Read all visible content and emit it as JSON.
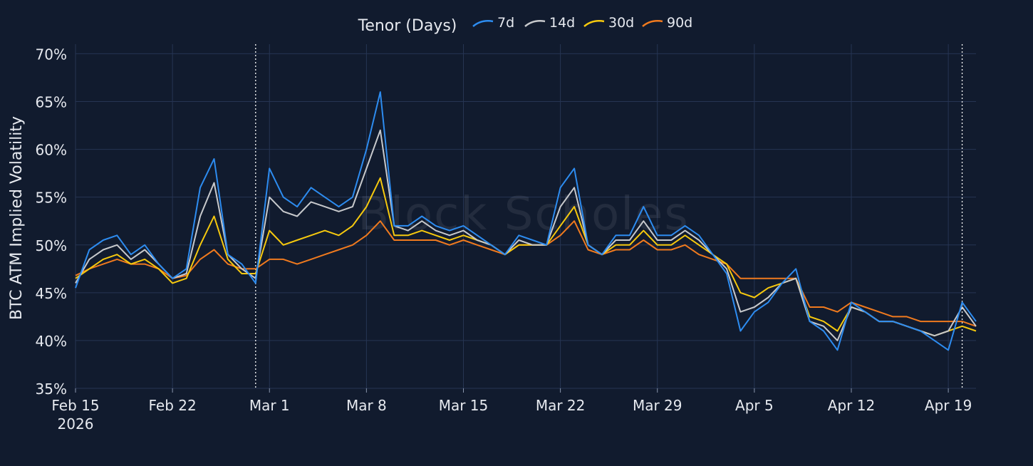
{
  "chart_data": {
    "type": "line",
    "legend": {
      "title": "Tenor (Days)",
      "placement": "top-center",
      "entries": [
        "7d",
        "14d",
        "30d",
        "90d"
      ]
    },
    "watermark": "Block Scholes",
    "ylabel": "BTC ATM Implied Volatility",
    "xlabel": "",
    "ylim": [
      35,
      71
    ],
    "y_unit": "%",
    "y_ticks": [
      35,
      40,
      45,
      50,
      55,
      60,
      65,
      70
    ],
    "y_tick_labels": [
      "35%",
      "40%",
      "45%",
      "50%",
      "55%",
      "60%",
      "65%",
      "70%"
    ],
    "xlim": [
      "2026-02-15",
      "2026-04-21"
    ],
    "x_ticks": [
      "2026-02-15",
      "2026-02-22",
      "2026-03-01",
      "2026-03-08",
      "2026-03-15",
      "2026-03-22",
      "2026-03-29",
      "2026-04-05",
      "2026-04-12",
      "2026-04-19"
    ],
    "x_tick_labels": [
      "Feb 15",
      "Feb 22",
      "Mar 1",
      "Mar 8",
      "Mar 15",
      "Mar 22",
      "Mar 29",
      "Apr 5",
      "Apr 12",
      "Apr 19"
    ],
    "x_year_label": "2026",
    "vertical_markers": [
      "2026-02-28",
      "2026-04-20"
    ],
    "grid": true,
    "colors": {
      "background": "#111b2e",
      "grid": "#263553",
      "text": "#e6e9ef",
      "7d": "#2d8cf0",
      "14d": "#c7c9cc",
      "30d": "#f6c90e",
      "90d": "#f07a1e"
    },
    "series": [
      {
        "name": "7d",
        "x": [
          "2026-02-15",
          "2026-02-16",
          "2026-02-17",
          "2026-02-18",
          "2026-02-19",
          "2026-02-20",
          "2026-02-21",
          "2026-02-22",
          "2026-02-23",
          "2026-02-24",
          "2026-02-25",
          "2026-02-26",
          "2026-02-27",
          "2026-02-28",
          "2026-03-01",
          "2026-03-02",
          "2026-03-03",
          "2026-03-04",
          "2026-03-05",
          "2026-03-06",
          "2026-03-07",
          "2026-03-08",
          "2026-03-09",
          "2026-03-10",
          "2026-03-11",
          "2026-03-12",
          "2026-03-13",
          "2026-03-14",
          "2026-03-15",
          "2026-03-16",
          "2026-03-17",
          "2026-03-18",
          "2026-03-19",
          "2026-03-20",
          "2026-03-21",
          "2026-03-22",
          "2026-03-23",
          "2026-03-24",
          "2026-03-25",
          "2026-03-26",
          "2026-03-27",
          "2026-03-28",
          "2026-03-29",
          "2026-03-30",
          "2026-03-31",
          "2026-04-01",
          "2026-04-02",
          "2026-04-03",
          "2026-04-04",
          "2026-04-05",
          "2026-04-06",
          "2026-04-07",
          "2026-04-08",
          "2026-04-09",
          "2026-04-10",
          "2026-04-11",
          "2026-04-12",
          "2026-04-13",
          "2026-04-14",
          "2026-04-15",
          "2026-04-16",
          "2026-04-17",
          "2026-04-18",
          "2026-04-19",
          "2026-04-20",
          "2026-04-21"
        ],
        "values": [
          45.5,
          49.5,
          50.5,
          51.0,
          49.0,
          50.0,
          48.0,
          46.5,
          47.5,
          56.0,
          59.0,
          49.0,
          48.0,
          46.0,
          58.0,
          55.0,
          54.0,
          56.0,
          55.0,
          54.0,
          55.0,
          60.0,
          66.0,
          52.0,
          52.0,
          53.0,
          52.0,
          51.5,
          52.0,
          51.0,
          50.0,
          49.0,
          51.0,
          50.5,
          50.0,
          56.0,
          58.0,
          50.0,
          49.0,
          51.0,
          51.0,
          54.0,
          51.0,
          51.0,
          52.0,
          51.0,
          49.0,
          47.0,
          41.0,
          43.0,
          44.0,
          46.0,
          47.5,
          42.0,
          41.0,
          39.0,
          44.0,
          43.0,
          42.0,
          42.0,
          41.5,
          41.0,
          40.0,
          39.0,
          44.0,
          42.0
        ]
      },
      {
        "name": "14d",
        "x": [
          "2026-02-15",
          "2026-02-16",
          "2026-02-17",
          "2026-02-18",
          "2026-02-19",
          "2026-02-20",
          "2026-02-21",
          "2026-02-22",
          "2026-02-23",
          "2026-02-24",
          "2026-02-25",
          "2026-02-26",
          "2026-02-27",
          "2026-02-28",
          "2026-03-01",
          "2026-03-02",
          "2026-03-03",
          "2026-03-04",
          "2026-03-05",
          "2026-03-06",
          "2026-03-07",
          "2026-03-08",
          "2026-03-09",
          "2026-03-10",
          "2026-03-11",
          "2026-03-12",
          "2026-03-13",
          "2026-03-14",
          "2026-03-15",
          "2026-03-16",
          "2026-03-17",
          "2026-03-18",
          "2026-03-19",
          "2026-03-20",
          "2026-03-21",
          "2026-03-22",
          "2026-03-23",
          "2026-03-24",
          "2026-03-25",
          "2026-03-26",
          "2026-03-27",
          "2026-03-28",
          "2026-03-29",
          "2026-03-30",
          "2026-03-31",
          "2026-04-01",
          "2026-04-02",
          "2026-04-03",
          "2026-04-04",
          "2026-04-05",
          "2026-04-06",
          "2026-04-07",
          "2026-04-08",
          "2026-04-09",
          "2026-04-10",
          "2026-04-11",
          "2026-04-12",
          "2026-04-13",
          "2026-04-14",
          "2026-04-15",
          "2026-04-16",
          "2026-04-17",
          "2026-04-18",
          "2026-04-19",
          "2026-04-20",
          "2026-04-21"
        ],
        "values": [
          46.0,
          48.5,
          49.5,
          50.0,
          48.5,
          49.5,
          48.0,
          46.5,
          47.0,
          53.0,
          56.5,
          49.0,
          47.5,
          46.5,
          55.0,
          53.5,
          53.0,
          54.5,
          54.0,
          53.5,
          54.0,
          58.0,
          62.0,
          52.0,
          51.5,
          52.5,
          51.5,
          51.0,
          51.5,
          50.5,
          50.0,
          49.0,
          50.5,
          50.0,
          50.0,
          54.0,
          56.0,
          50.0,
          49.0,
          50.5,
          50.5,
          52.5,
          50.5,
          50.5,
          51.5,
          50.5,
          49.0,
          47.5,
          43.0,
          43.5,
          44.5,
          46.0,
          46.5,
          42.0,
          41.5,
          40.0,
          43.5,
          43.0,
          42.0,
          42.0,
          41.5,
          41.0,
          40.5,
          41.0,
          43.5,
          41.5
        ]
      },
      {
        "name": "30d",
        "x": [
          "2026-02-15",
          "2026-02-16",
          "2026-02-17",
          "2026-02-18",
          "2026-02-19",
          "2026-02-20",
          "2026-02-21",
          "2026-02-22",
          "2026-02-23",
          "2026-02-24",
          "2026-02-25",
          "2026-02-26",
          "2026-02-27",
          "2026-02-28",
          "2026-03-01",
          "2026-03-02",
          "2026-03-03",
          "2026-03-04",
          "2026-03-05",
          "2026-03-06",
          "2026-03-07",
          "2026-03-08",
          "2026-03-09",
          "2026-03-10",
          "2026-03-11",
          "2026-03-12",
          "2026-03-13",
          "2026-03-14",
          "2026-03-15",
          "2026-03-16",
          "2026-03-17",
          "2026-03-18",
          "2026-03-19",
          "2026-03-20",
          "2026-03-21",
          "2026-03-22",
          "2026-03-23",
          "2026-03-24",
          "2026-03-25",
          "2026-03-26",
          "2026-03-27",
          "2026-03-28",
          "2026-03-29",
          "2026-03-30",
          "2026-03-31",
          "2026-04-01",
          "2026-04-02",
          "2026-04-03",
          "2026-04-04",
          "2026-04-05",
          "2026-04-06",
          "2026-04-07",
          "2026-04-08",
          "2026-04-09",
          "2026-04-10",
          "2026-04-11",
          "2026-04-12",
          "2026-04-13",
          "2026-04-14",
          "2026-04-15",
          "2026-04-16",
          "2026-04-17",
          "2026-04-18",
          "2026-04-19",
          "2026-04-20",
          "2026-04-21"
        ],
        "values": [
          46.5,
          47.5,
          48.5,
          49.0,
          48.0,
          48.5,
          47.5,
          46.0,
          46.5,
          50.0,
          53.0,
          48.5,
          47.0,
          47.0,
          51.5,
          50.0,
          50.5,
          51.0,
          51.5,
          51.0,
          52.0,
          54.0,
          57.0,
          51.0,
          51.0,
          51.5,
          51.0,
          50.5,
          51.0,
          50.5,
          50.0,
          49.0,
          50.0,
          50.0,
          50.0,
          52.0,
          54.0,
          50.0,
          49.0,
          50.0,
          50.0,
          51.5,
          50.0,
          50.0,
          51.0,
          50.0,
          49.0,
          48.0,
          45.0,
          44.5,
          45.5,
          46.0,
          46.5,
          42.5,
          42.0,
          41.0,
          43.5,
          43.0,
          42.0,
          42.0,
          41.5,
          41.0,
          40.5,
          41.0,
          41.5,
          41.0
        ]
      },
      {
        "name": "90d",
        "x": [
          "2026-02-15",
          "2026-02-16",
          "2026-02-17",
          "2026-02-18",
          "2026-02-19",
          "2026-02-20",
          "2026-02-21",
          "2026-02-22",
          "2026-02-23",
          "2026-02-24",
          "2026-02-25",
          "2026-02-26",
          "2026-02-27",
          "2026-02-28",
          "2026-03-01",
          "2026-03-02",
          "2026-03-03",
          "2026-03-04",
          "2026-03-05",
          "2026-03-06",
          "2026-03-07",
          "2026-03-08",
          "2026-03-09",
          "2026-03-10",
          "2026-03-11",
          "2026-03-12",
          "2026-03-13",
          "2026-03-14",
          "2026-03-15",
          "2026-03-16",
          "2026-03-17",
          "2026-03-18",
          "2026-03-19",
          "2026-03-20",
          "2026-03-21",
          "2026-03-22",
          "2026-03-23",
          "2026-03-24",
          "2026-03-25",
          "2026-03-26",
          "2026-03-27",
          "2026-03-28",
          "2026-03-29",
          "2026-03-30",
          "2026-03-31",
          "2026-04-01",
          "2026-04-02",
          "2026-04-03",
          "2026-04-04",
          "2026-04-05",
          "2026-04-06",
          "2026-04-07",
          "2026-04-08",
          "2026-04-09",
          "2026-04-10",
          "2026-04-11",
          "2026-04-12",
          "2026-04-13",
          "2026-04-14",
          "2026-04-15",
          "2026-04-16",
          "2026-04-17",
          "2026-04-18",
          "2026-04-19",
          "2026-04-20",
          "2026-04-21"
        ],
        "values": [
          46.8,
          47.5,
          48.0,
          48.5,
          48.0,
          48.0,
          47.5,
          46.5,
          46.8,
          48.5,
          49.5,
          48.0,
          47.5,
          47.5,
          48.5,
          48.5,
          48.0,
          48.5,
          49.0,
          49.5,
          50.0,
          51.0,
          52.5,
          50.5,
          50.5,
          50.5,
          50.5,
          50.0,
          50.5,
          50.0,
          49.5,
          49.0,
          50.0,
          50.0,
          50.0,
          51.0,
          52.5,
          49.5,
          49.0,
          49.5,
          49.5,
          50.5,
          49.5,
          49.5,
          50.0,
          49.0,
          48.5,
          48.0,
          46.5,
          46.5,
          46.5,
          46.5,
          46.5,
          43.5,
          43.5,
          43.0,
          44.0,
          43.5,
          43.0,
          42.5,
          42.5,
          42.0,
          42.0,
          42.0,
          42.0,
          41.5
        ]
      }
    ]
  }
}
